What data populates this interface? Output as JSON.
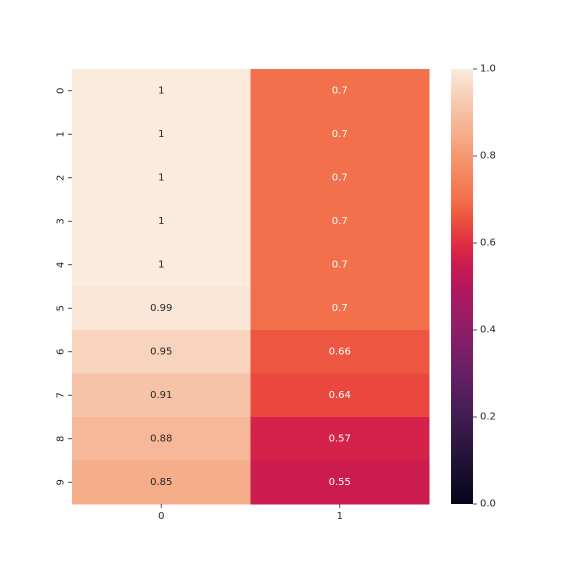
{
  "chart_data": {
    "type": "heatmap",
    "title": "",
    "xlabel": "",
    "ylabel": "",
    "x_categories": [
      "0",
      "1"
    ],
    "y_categories": [
      "0",
      "1",
      "2",
      "3",
      "4",
      "5",
      "6",
      "7",
      "8",
      "9"
    ],
    "values": [
      [
        1.0,
        0.7
      ],
      [
        1.0,
        0.7
      ],
      [
        1.0,
        0.7
      ],
      [
        1.0,
        0.7
      ],
      [
        1.0,
        0.7
      ],
      [
        0.99,
        0.7
      ],
      [
        0.95,
        0.66
      ],
      [
        0.91,
        0.64
      ],
      [
        0.88,
        0.57
      ],
      [
        0.85,
        0.55
      ]
    ],
    "annotations": [
      [
        "1",
        "0.7"
      ],
      [
        "1",
        "0.7"
      ],
      [
        "1",
        "0.7"
      ],
      [
        "1",
        "0.7"
      ],
      [
        "1",
        "0.7"
      ],
      [
        "0.99",
        "0.7"
      ],
      [
        "0.95",
        "0.66"
      ],
      [
        "0.91",
        "0.64"
      ],
      [
        "0.88",
        "0.57"
      ],
      [
        "0.85",
        "0.55"
      ]
    ],
    "colorbar": {
      "vmin": 0.0,
      "vmax": 1.0,
      "ticks": [
        "0.0",
        "0.2",
        "0.4",
        "0.6",
        "0.8",
        "1.0"
      ],
      "colormap": "rocket"
    }
  }
}
